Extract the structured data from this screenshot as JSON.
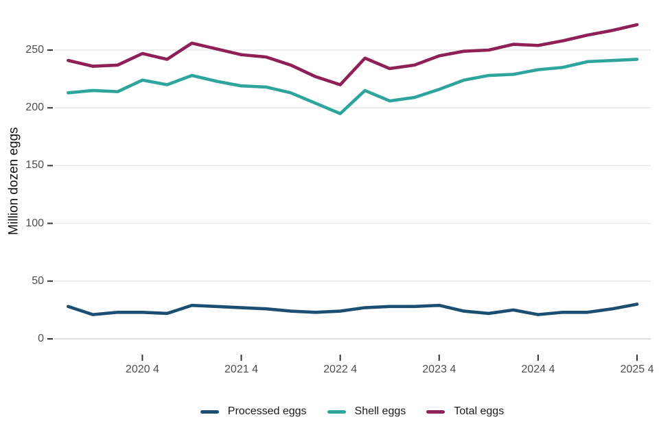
{
  "chart": {
    "y_ticks": [
      0,
      50,
      100,
      150,
      200,
      250
    ],
    "x_ticks": [
      {
        "label": "2020 4",
        "index": 3
      },
      {
        "label": "2021 4",
        "index": 7
      },
      {
        "label": "2022 4",
        "index": 11
      },
      {
        "label": "2023 4",
        "index": 15
      },
      {
        "label": "2024 4",
        "index": 19
      },
      {
        "label": "2025 4",
        "index": 23
      }
    ],
    "colors": {
      "grid": "#e6e6e6",
      "zero_line": "#d2d2d2",
      "tick_mark": "#333333",
      "tick_text": "#4d4d4d"
    }
  },
  "chart_data": {
    "type": "line",
    "title": "",
    "xlabel": "",
    "ylabel": "Million dozen eggs",
    "ylim": [
      0,
      280
    ],
    "grid": true,
    "legend_position": "bottom",
    "x": [
      "2020 Q1",
      "2020 Q2",
      "2020 Q3",
      "2020 Q4",
      "2021 Q1",
      "2021 Q2",
      "2021 Q3",
      "2021 Q4",
      "2022 Q1",
      "2022 Q2",
      "2022 Q3",
      "2022 Q4",
      "2023 Q1",
      "2023 Q2",
      "2023 Q3",
      "2023 Q4",
      "2024 Q1",
      "2024 Q2",
      "2024 Q3",
      "2024 Q4",
      "2025 Q1",
      "2025 Q2",
      "2025 Q3",
      "2025 Q4"
    ],
    "x_tick_labels": [
      "2020 4",
      "2021 4",
      "2022 4",
      "2023 4",
      "2024 4",
      "2025 4"
    ],
    "series": [
      {
        "name": "Processed eggs",
        "color": "#1c4e71",
        "values": [
          28,
          21,
          23,
          23,
          22,
          29,
          28,
          27,
          26,
          24,
          23,
          24,
          27,
          28,
          28,
          29,
          24,
          22,
          25,
          21,
          23,
          23,
          26,
          30
        ]
      },
      {
        "name": "Shell eggs",
        "color": "#2ea59c",
        "values": [
          213,
          215,
          214,
          224,
          220,
          228,
          223,
          219,
          218,
          213,
          204,
          195,
          215,
          206,
          209,
          216,
          224,
          228,
          229,
          233,
          235,
          240,
          241,
          242
        ]
      },
      {
        "name": "Total eggs",
        "color": "#8f1f57",
        "values": [
          241,
          236,
          237,
          247,
          242,
          256,
          251,
          246,
          244,
          237,
          227,
          220,
          243,
          234,
          237,
          245,
          249,
          250,
          255,
          254,
          258,
          263,
          267,
          272
        ]
      }
    ]
  }
}
